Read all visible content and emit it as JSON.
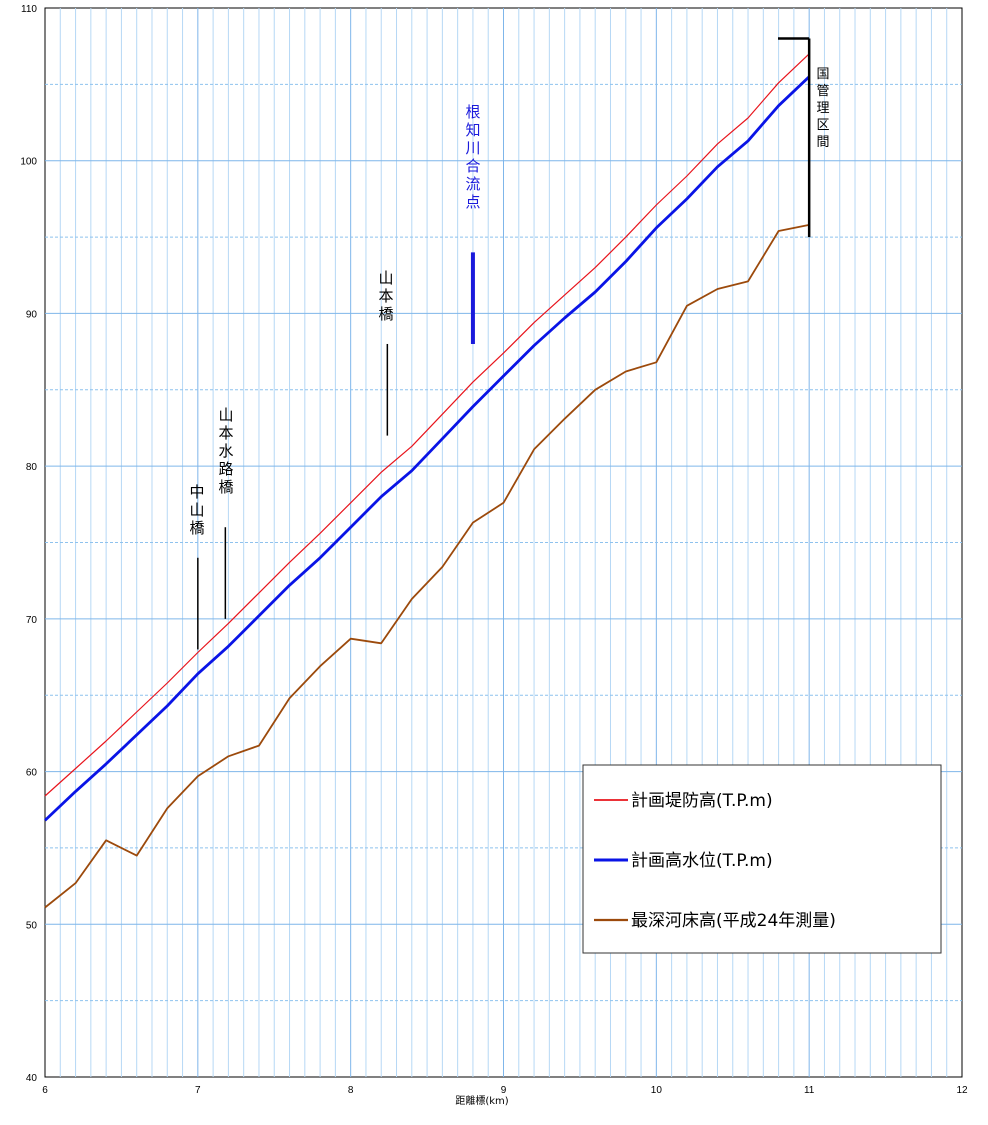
{
  "chart_data": {
    "type": "line",
    "xlabel": "距離標(km)",
    "ylabel": "",
    "xlim": [
      6,
      12
    ],
    "ylim": [
      40,
      110
    ],
    "x_ticks": [
      "6",
      "7",
      "8",
      "9",
      "10",
      "11",
      "12"
    ],
    "y_ticks": [
      "40",
      "50",
      "60",
      "70",
      "80",
      "90",
      "100",
      "110"
    ],
    "grid": true,
    "legend_position": "bottom-right",
    "series": [
      {
        "name": "計画堤防高(T.P.m)",
        "color": "#e8141c",
        "x": [
          6.0,
          6.2,
          6.4,
          6.6,
          6.8,
          7.0,
          7.2,
          7.4,
          7.6,
          7.8,
          8.0,
          8.2,
          8.4,
          8.6,
          8.8,
          9.0,
          9.2,
          9.4,
          9.6,
          9.8,
          10.0,
          10.2,
          10.4,
          10.6,
          10.8,
          11.0
        ],
        "y": [
          58.4,
          60.2,
          62.0,
          63.9,
          65.8,
          67.8,
          69.7,
          71.7,
          73.7,
          75.6,
          77.6,
          79.6,
          81.3,
          83.4,
          85.5,
          87.4,
          89.4,
          91.2,
          93.0,
          95.0,
          97.1,
          99.0,
          101.1,
          102.8,
          105.1,
          107.0
        ]
      },
      {
        "name": "計画高水位(T.P.m)",
        "color": "#0a14e6",
        "x": [
          6.0,
          6.2,
          6.4,
          6.6,
          6.8,
          7.0,
          7.2,
          7.4,
          7.6,
          7.8,
          8.0,
          8.2,
          8.4,
          8.6,
          8.8,
          9.0,
          9.2,
          9.4,
          9.6,
          9.8,
          10.0,
          10.2,
          10.4,
          10.6,
          10.8,
          11.0
        ],
        "y": [
          56.8,
          58.7,
          60.5,
          62.4,
          64.3,
          66.4,
          68.2,
          70.2,
          72.2,
          74.0,
          76.0,
          78.0,
          79.7,
          81.8,
          83.9,
          85.9,
          87.9,
          89.7,
          91.4,
          93.4,
          95.6,
          97.5,
          99.6,
          101.3,
          103.6,
          105.5
        ]
      },
      {
        "name": "最深河床高(平成24年測量)",
        "color": "#9c4a0c",
        "x": [
          6.0,
          6.2,
          6.4,
          6.6,
          6.8,
          7.0,
          7.2,
          7.4,
          7.6,
          7.8,
          8.0,
          8.2,
          8.4,
          8.6,
          8.8,
          9.0,
          9.2,
          9.4,
          9.6,
          9.8,
          10.0,
          10.2,
          10.4,
          10.6,
          10.8,
          11.0
        ],
        "y": [
          51.1,
          52.7,
          55.5,
          54.5,
          57.6,
          59.7,
          61.0,
          61.7,
          64.8,
          66.9,
          68.7,
          68.4,
          71.3,
          73.4,
          76.3,
          77.6,
          81.1,
          83.1,
          85.0,
          86.2,
          86.8,
          90.5,
          91.6,
          92.1,
          95.4,
          95.8
        ]
      }
    ],
    "annotations": [
      {
        "text": "中山橋",
        "x": 7.0,
        "y_top": 74.0,
        "y_bottom": 68.0,
        "color": "#000000"
      },
      {
        "text": "山本水路橋",
        "x": 7.18,
        "y_top": 76.0,
        "y_bottom": 70.0,
        "color": "#000000"
      },
      {
        "text": "山本橋",
        "x": 8.24,
        "y_top": 88.0,
        "y_bottom": 82.0,
        "color": "#000000"
      },
      {
        "text": "根知川合流点",
        "x": 8.8,
        "y_top": 94.0,
        "y_bottom": 88.0,
        "color": "#1a1adc"
      },
      {
        "text": "国管理区間",
        "x": 11.0,
        "y_top": 108.0,
        "y_bottom": 95.0,
        "color": "#000000"
      }
    ]
  }
}
